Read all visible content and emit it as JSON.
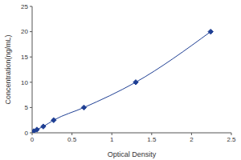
{
  "chart_data": {
    "type": "line",
    "x_label": "Optical Density",
    "y_label": "Concentration(ng/mL)",
    "x": [
      0.02,
      0.06,
      0.14,
      0.27,
      0.65,
      1.3,
      2.24
    ],
    "values": [
      0.31,
      0.63,
      1.25,
      2.5,
      5,
      10,
      20
    ],
    "color": "#1f3f94",
    "marker": "diamond",
    "line_style": "solid",
    "xlim": [
      0,
      2.5
    ],
    "xticks": [
      0,
      0.5,
      1,
      1.5,
      2,
      2.5
    ],
    "ylim": [
      0,
      25
    ],
    "yticks": [
      0,
      5,
      10,
      15,
      20,
      25
    ]
  }
}
